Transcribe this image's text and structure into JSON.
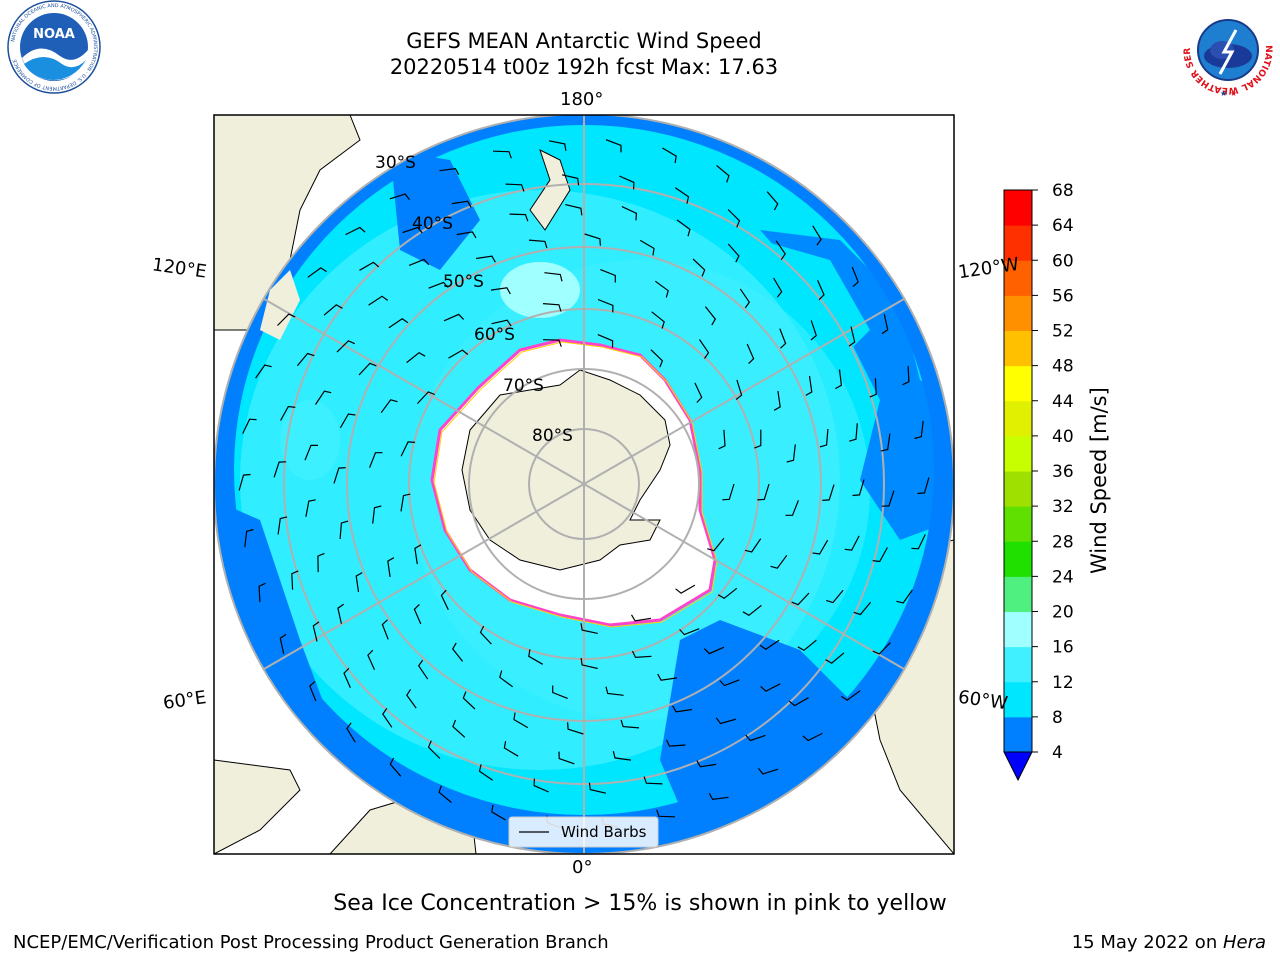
{
  "title": {
    "line1": "GEFS MEAN Antarctic Wind Speed",
    "line2": "20220514 t00z 192h fcst   Max: 17.63"
  },
  "map": {
    "projection": "south-polar-stereographic",
    "lon_labels": {
      "top": "180°",
      "bottom": "0°",
      "upper_left": "120°E",
      "upper_right": "120°W",
      "lower_left": "60°E",
      "lower_right": "60°W"
    },
    "lat_labels": [
      "30°S",
      "40°S",
      "50°S",
      "60°S",
      "70°S",
      "80°S"
    ],
    "legend_label": "Wind Barbs"
  },
  "colorbar": {
    "label": "Wind Speed [m/s]",
    "ticks": [
      4,
      8,
      12,
      16,
      20,
      24,
      28,
      32,
      36,
      40,
      44,
      48,
      52,
      56,
      60,
      64,
      68
    ],
    "colors": [
      "#0080ff",
      "#00e6ff",
      "#40f0ff",
      "#a0ffff",
      "#50f080",
      "#20e000",
      "#60e000",
      "#a0e000",
      "#c8ff00",
      "#e0f000",
      "#ffff00",
      "#ffc000",
      "#ff9000",
      "#ff6000",
      "#ff3000",
      "#ff0000"
    ],
    "under_color": "#0000ff"
  },
  "note": "Sea Ice Concentration > 15% is shown in pink to yellow",
  "footer": {
    "left": "NCEP/EMC/Verification Post Processing Product Generation Branch",
    "right_prefix": "15 May 2022 on ",
    "right_italic": "Hera"
  },
  "logos": {
    "noaa": {
      "text": "NOAA",
      "ring_text": "NATIONAL OCEANIC AND ATMOSPHERIC ADMINISTRATION · U.S. DEPARTMENT OF COMMERCE"
    },
    "nws": {
      "ring_text": "NATIONAL WEATHER SERVICE"
    }
  }
}
